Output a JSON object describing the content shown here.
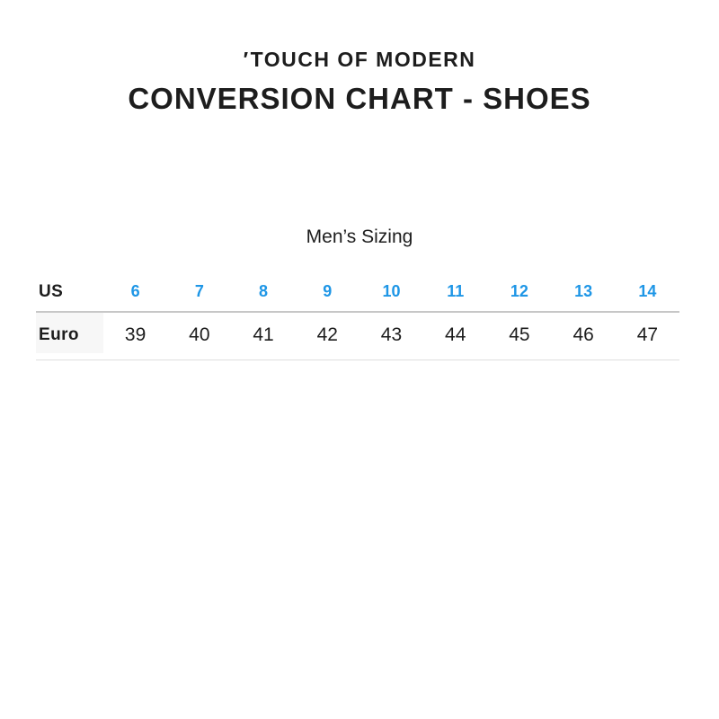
{
  "colors": {
    "accent_blue": "#1E96E6",
    "text": "#1D1D1D",
    "label_cell_bg": "#F7F7F7",
    "divider_strong": "#C7C7C7",
    "divider_light": "#DEDEDE"
  },
  "header": {
    "logo_tick": "′",
    "logo_text": "TOUCH OF MODERN",
    "page_title": "CONVERSION CHART - SHOES"
  },
  "section": {
    "heading": "Men’s Sizing"
  },
  "conversion_table": {
    "rows": [
      {
        "label": "US",
        "values": [
          "6",
          "7",
          "8",
          "9",
          "10",
          "11",
          "12",
          "13",
          "14"
        ]
      },
      {
        "label": "Euro",
        "values": [
          "39",
          "40",
          "41",
          "42",
          "43",
          "44",
          "45",
          "46",
          "47"
        ]
      }
    ]
  }
}
